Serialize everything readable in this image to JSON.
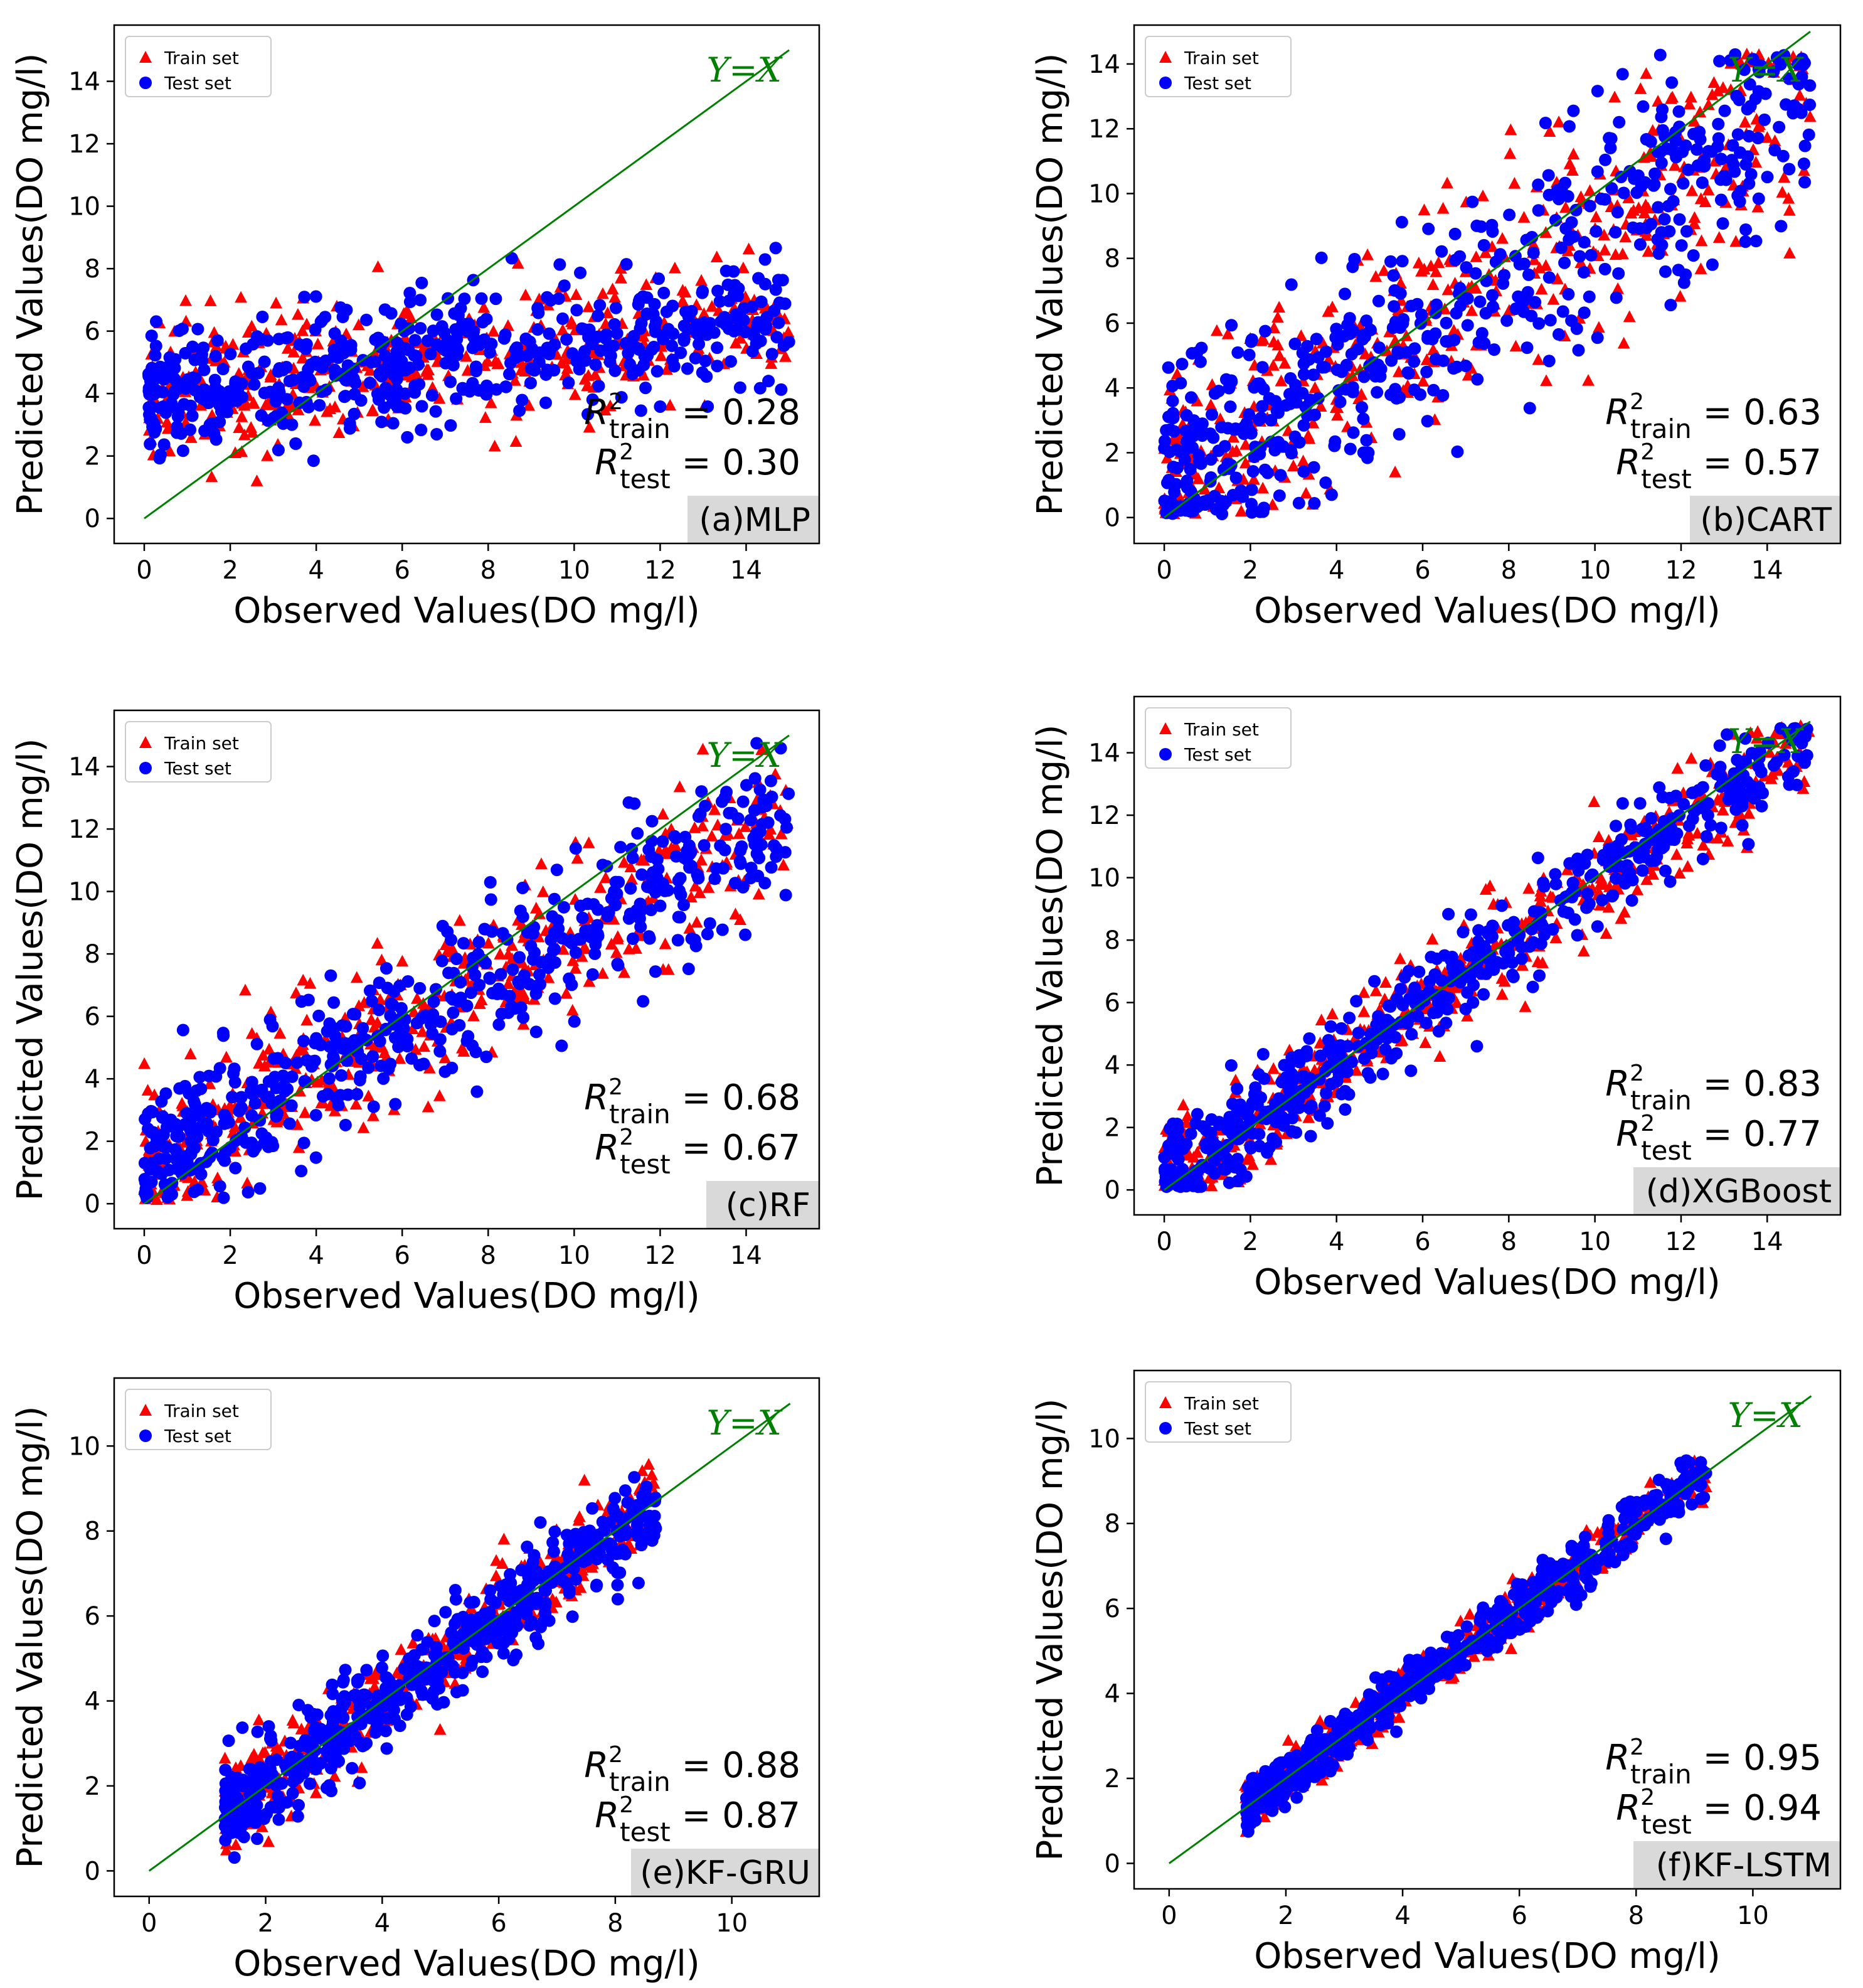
{
  "figure": {
    "legend": {
      "train_label": "Train set",
      "test_label": "Test set"
    },
    "colors": {
      "train": "#ff0000",
      "test": "#0000ff",
      "identity_line": "#008000",
      "panel_tag_bg": "#d9d9d9"
    }
  },
  "chart_data": [
    {
      "type": "scatter",
      "tag": "(a)MLP",
      "xlabel": "Observed Values(DO mg/l)",
      "ylabel": "Predicted Values(DO mg/l)",
      "xlim": [
        -0.7,
        15.7
      ],
      "ylim": [
        -0.8,
        15.8
      ],
      "xticks": [
        0,
        2,
        4,
        6,
        8,
        10,
        12,
        14
      ],
      "yticks": [
        0,
        2,
        4,
        6,
        8,
        10,
        12,
        14
      ],
      "line_label": "Y=X",
      "line_range": [
        0,
        15
      ],
      "r2_train": "0.28",
      "r2_test": "0.30",
      "series": [
        {
          "name": "Train set",
          "cloud": {
            "n": 450,
            "xmin": 0.1,
            "xmax": 15,
            "slope": 0.17,
            "intercept": 3.9,
            "noise": 1.0
          }
        },
        {
          "name": "Test set",
          "cloud": {
            "n": 550,
            "xmin": 0.1,
            "xmax": 15,
            "slope": 0.17,
            "intercept": 3.9,
            "noise": 1.0
          }
        }
      ]
    },
    {
      "type": "scatter",
      "tag": "(b)CART",
      "xlabel": "Observed Values(DO mg/l)",
      "ylabel": "Predicted Values(DO mg/l)",
      "xlim": [
        -0.7,
        15.7
      ],
      "ylim": [
        -0.8,
        15.2
      ],
      "xticks": [
        0,
        2,
        4,
        6,
        8,
        10,
        12,
        14
      ],
      "yticks": [
        0,
        2,
        4,
        6,
        8,
        10,
        12,
        14
      ],
      "line_label": "Y=X",
      "line_range": [
        0,
        15
      ],
      "r2_train": "0.63",
      "r2_test": "0.57",
      "series": [
        {
          "name": "Train set",
          "cloud": {
            "n": 450,
            "xmin": 0,
            "xmax": 15,
            "slope": 0.8,
            "intercept": 1.0,
            "noise": 1.6
          }
        },
        {
          "name": "Test set",
          "cloud": {
            "n": 550,
            "xmin": 0,
            "xmax": 15,
            "slope": 0.8,
            "intercept": 1.0,
            "noise": 1.6
          }
        }
      ]
    },
    {
      "type": "scatter",
      "tag": "(c)RF",
      "xlabel": "Observed Values(DO mg/l)",
      "ylabel": "Predicted Values(DO mg/l)",
      "xlim": [
        -0.7,
        15.7
      ],
      "ylim": [
        -0.8,
        15.8
      ],
      "xticks": [
        0,
        2,
        4,
        6,
        8,
        10,
        12,
        14
      ],
      "yticks": [
        0,
        2,
        4,
        6,
        8,
        10,
        12,
        14
      ],
      "line_label": "Y=X",
      "line_range": [
        0,
        15
      ],
      "r2_train": "0.68",
      "r2_test": "0.67",
      "series": [
        {
          "name": "Train set",
          "cloud": {
            "n": 450,
            "xmin": 0,
            "xmax": 15,
            "slope": 0.75,
            "intercept": 1.2,
            "noise": 1.2
          }
        },
        {
          "name": "Test set",
          "cloud": {
            "n": 550,
            "xmin": 0,
            "xmax": 15,
            "slope": 0.75,
            "intercept": 1.2,
            "noise": 1.2
          }
        }
      ]
    },
    {
      "type": "scatter",
      "tag": "(d)XGBoost",
      "xlabel": "Observed Values(DO mg/l)",
      "ylabel": "Predicted Values(DO mg/l)",
      "xlim": [
        -0.7,
        15.7
      ],
      "ylim": [
        -0.8,
        15.8
      ],
      "xticks": [
        0,
        2,
        4,
        6,
        8,
        10,
        12,
        14
      ],
      "yticks": [
        0,
        2,
        4,
        6,
        8,
        10,
        12,
        14
      ],
      "line_label": "Y=X",
      "line_range": [
        0,
        15
      ],
      "r2_train": "0.83",
      "r2_test": "0.77",
      "series": [
        {
          "name": "Train set",
          "cloud": {
            "n": 450,
            "xmin": 0,
            "xmax": 15,
            "slope": 0.95,
            "intercept": 0.3,
            "noise": 0.8
          }
        },
        {
          "name": "Test set",
          "cloud": {
            "n": 550,
            "xmin": 0,
            "xmax": 15,
            "slope": 0.95,
            "intercept": 0.3,
            "noise": 0.8
          }
        }
      ]
    },
    {
      "type": "scatter",
      "tag": "(e)KF-GRU",
      "xlabel": "Observed Values(DO mg/l)",
      "ylabel": "Predicted Values(DO mg/l)",
      "xlim": [
        -0.6,
        11.5
      ],
      "ylim": [
        -0.6,
        11.6
      ],
      "xticks": [
        0,
        2,
        4,
        6,
        8,
        10
      ],
      "yticks": [
        0,
        2,
        4,
        6,
        8,
        10
      ],
      "line_label": "Y=X",
      "line_range": [
        0,
        11
      ],
      "r2_train": "0.88",
      "r2_test": "0.87",
      "series": [
        {
          "name": "Train set",
          "cloud": {
            "n": 450,
            "xmin": 1.3,
            "xmax": 8.7,
            "slope": 0.98,
            "intercept": 0.1,
            "noise": 0.5
          }
        },
        {
          "name": "Test set",
          "cloud": {
            "n": 550,
            "xmin": 1.3,
            "xmax": 8.7,
            "slope": 0.98,
            "intercept": 0.1,
            "noise": 0.5
          }
        }
      ]
    },
    {
      "type": "scatter",
      "tag": "(f)KF-LSTM",
      "xlabel": "Observed Values(DO mg/l)",
      "ylabel": "Predicted Values(DO mg/l)",
      "xlim": [
        -0.6,
        11.5
      ],
      "ylim": [
        -0.6,
        11.6
      ],
      "xticks": [
        0,
        2,
        4,
        6,
        8,
        10
      ],
      "yticks": [
        0,
        2,
        4,
        6,
        8,
        10
      ],
      "line_label": "Y=X",
      "line_range": [
        0,
        11
      ],
      "r2_train": "0.95",
      "r2_test": "0.94",
      "series": [
        {
          "name": "Train set",
          "cloud": {
            "n": 450,
            "xmin": 1.3,
            "xmax": 9.2,
            "slope": 1.0,
            "intercept": 0.0,
            "noise": 0.3
          }
        },
        {
          "name": "Test set",
          "cloud": {
            "n": 550,
            "xmin": 1.3,
            "xmax": 9.2,
            "slope": 1.0,
            "intercept": 0.0,
            "noise": 0.3
          }
        }
      ]
    }
  ]
}
